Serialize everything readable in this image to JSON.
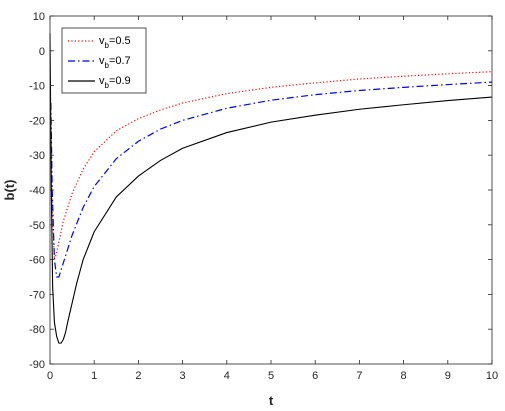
{
  "chart_data": {
    "type": "line",
    "title": "",
    "xlabel": "t",
    "ylabel": "b(t)",
    "xlim": [
      0,
      10
    ],
    "ylim": [
      -90,
      10
    ],
    "xticks": [
      0,
      1,
      2,
      3,
      4,
      5,
      6,
      7,
      8,
      9,
      10
    ],
    "yticks": [
      10,
      0,
      -10,
      -20,
      -30,
      -40,
      -50,
      -60,
      -70,
      -80,
      -90
    ],
    "grid": false,
    "legend_position": "top-left",
    "series": [
      {
        "name": "v",
        "name_sub": "b",
        "name_suffix": "=0.5",
        "color": "#ff0000",
        "style": "dotted",
        "x": [
          0.02,
          0.05,
          0.1,
          0.15,
          0.2,
          0.3,
          0.5,
          0.75,
          1,
          1.5,
          2,
          2.5,
          3,
          4,
          5,
          6,
          7,
          8,
          9,
          10
        ],
        "y": [
          -20,
          -45,
          -60,
          -58,
          -55,
          -49,
          -41,
          -34,
          -29,
          -23,
          -19.5,
          -17,
          -15,
          -12.3,
          -10.5,
          -9.2,
          -8.1,
          -7.3,
          -6.6,
          -6
        ]
      },
      {
        "name": "v",
        "name_sub": "b",
        "name_suffix": "=0.7",
        "color": "#0000ff",
        "style": "dashdot",
        "x": [
          0.02,
          0.05,
          0.1,
          0.15,
          0.2,
          0.3,
          0.5,
          0.75,
          1,
          1.5,
          2,
          2.5,
          3,
          4,
          5,
          6,
          7,
          8,
          9,
          10
        ],
        "y": [
          -15,
          -40,
          -60,
          -65,
          -65,
          -61,
          -53,
          -45,
          -39,
          -31,
          -26,
          -22.5,
          -20,
          -16.5,
          -14.2,
          -12.6,
          -11.4,
          -10.5,
          -9.7,
          -9
        ]
      },
      {
        "name": "v",
        "name_sub": "b",
        "name_suffix": "=0.9",
        "color": "#000000",
        "style": "solid",
        "x": [
          0.0,
          0.03,
          0.06,
          0.1,
          0.15,
          0.2,
          0.25,
          0.3,
          0.35,
          0.4,
          0.5,
          0.6,
          0.75,
          1,
          1.5,
          2,
          2.5,
          3,
          4,
          5,
          6,
          7,
          8,
          9,
          10
        ],
        "y": [
          5,
          -40,
          -68,
          -78,
          -82,
          -84,
          -84,
          -83,
          -81,
          -78,
          -72.5,
          -67,
          -60,
          -52,
          -42,
          -36,
          -31.5,
          -28,
          -23.5,
          -20.5,
          -18.5,
          -16.8,
          -15.5,
          -14.3,
          -13.3
        ]
      }
    ]
  }
}
